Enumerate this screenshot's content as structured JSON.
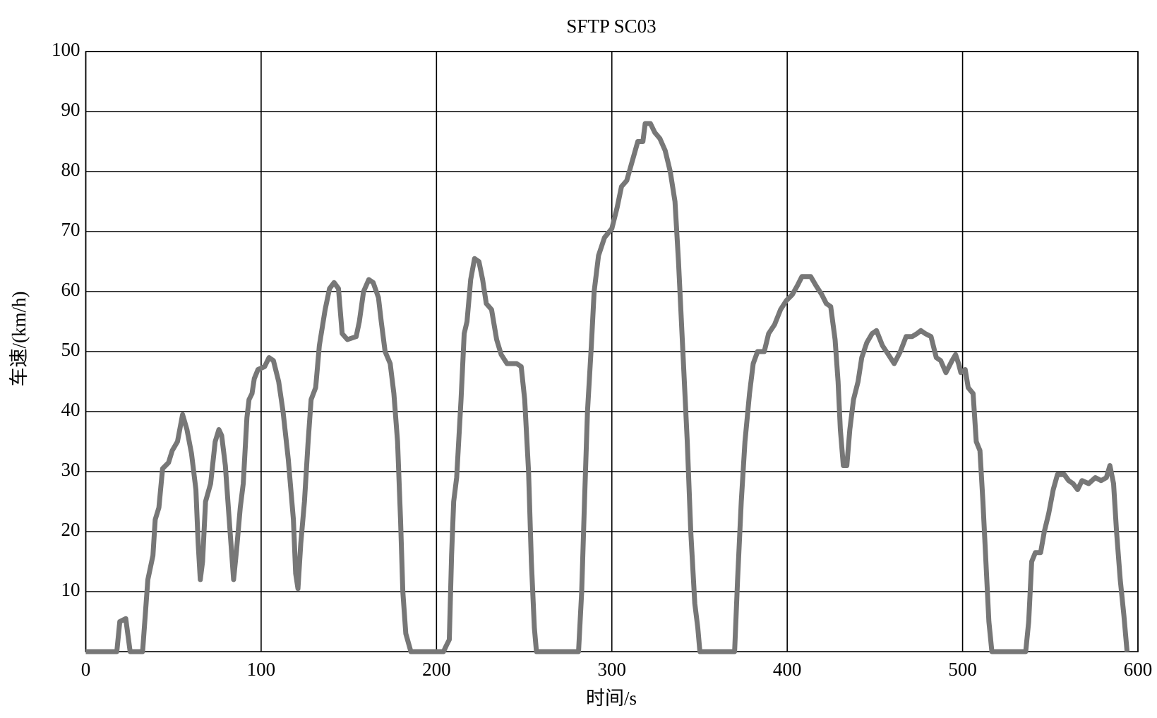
{
  "chart_data": {
    "type": "line",
    "title": "SFTP SC03",
    "x_label": "时间/s",
    "y_label": "车速/(km/h)",
    "xlim": [
      0,
      600
    ],
    "xticks": [
      0,
      100,
      200,
      300,
      400,
      500,
      600
    ],
    "ylim": [
      0,
      100
    ],
    "yticks": [
      10,
      20,
      30,
      40,
      50,
      60,
      70,
      80,
      90,
      100
    ],
    "grid": true,
    "x": [
      0,
      17.7,
      19.4,
      22.8,
      25.3,
      32.4,
      35.4,
      38.3,
      39.6,
      41.7,
      43.8,
      47.2,
      49.3,
      52.3,
      55.2,
      57.7,
      60.3,
      62.8,
      64.1,
      65.3,
      66.6,
      68.3,
      71.2,
      73.8,
      75.9,
      77.5,
      79.6,
      81.8,
      84.3,
      86,
      88.1,
      89.8,
      91.9,
      93.1,
      94.8,
      96.1,
      98.2,
      102,
      104.5,
      107,
      110,
      112.5,
      115.5,
      118.4,
      119.7,
      121,
      122.6,
      124.7,
      126.8,
      128.5,
      131.1,
      133.2,
      136.5,
      139,
      141.6,
      144.1,
      146.2,
      149.2,
      154.2,
      156,
      158.4,
      161.4,
      163.9,
      166.9,
      168.5,
      170.7,
      173.6,
      175.7,
      177.8,
      179.5,
      180.8,
      182.5,
      185.4,
      204,
      205.6,
      207.3,
      208.6,
      209.8,
      211.5,
      214,
      215.8,
      217.4,
      219.5,
      221.7,
      224.2,
      226.3,
      228.4,
      231.4,
      234.3,
      236.9,
      240.2,
      245.7,
      248.3,
      250.3,
      252.5,
      254.1,
      255.8,
      257,
      281,
      282.8,
      284.4,
      286.1,
      288.3,
      289.9,
      292.4,
      295.8,
      300,
      303,
      305.5,
      308.5,
      311.4,
      314.8,
      317.7,
      319,
      322,
      324.5,
      327.4,
      330.4,
      333.3,
      336,
      338,
      340.5,
      343,
      345,
      347.3,
      349,
      350.2,
      370,
      371.7,
      373.8,
      375.9,
      378.5,
      380.6,
      383.1,
      386.9,
      389.4,
      392.8,
      396.2,
      399.5,
      402.9,
      405.8,
      408.4,
      413.4,
      416.4,
      419.7,
      422.3,
      424.8,
      427.3,
      429,
      430.3,
      432,
      434,
      435.7,
      437.8,
      440.4,
      442.5,
      445.4,
      448.4,
      450.9,
      454.3,
      457.7,
      461,
      464.5,
      467.8,
      471.2,
      474,
      476.2,
      478.7,
      482,
      485,
      487.5,
      490.5,
      494,
      496,
      497.7,
      499,
      501.5,
      503.2,
      506,
      507.8,
      509.9,
      511.6,
      513.3,
      515,
      516.7,
      536,
      537.7,
      539.4,
      541.5,
      544.5,
      546.6,
      549.1,
      551.7,
      554.1,
      558,
      560.5,
      563,
      565.6,
      568.1,
      571.9,
      575.7,
      579,
      582,
      584,
      586.1,
      587.8,
      589.9,
      592,
      593.8
    ],
    "series": [
      {
        "name": "车速",
        "color": "#777777",
        "values": [
          0,
          0,
          5,
          5.5,
          0,
          0,
          12,
          16,
          22,
          24,
          30.5,
          31.5,
          33.5,
          35,
          39.5,
          37,
          33,
          27,
          18,
          12,
          15,
          25,
          28,
          35,
          37,
          36,
          31,
          22,
          12,
          17,
          24,
          28,
          39,
          42,
          43,
          45.5,
          47,
          47.5,
          49,
          48.5,
          45,
          40,
          32,
          22,
          13,
          10.5,
          18,
          25,
          35,
          42,
          44,
          51,
          57,
          60.5,
          61.5,
          60.5,
          53,
          52,
          52.5,
          55,
          60,
          62,
          61.5,
          59,
          55,
          50,
          48,
          43,
          35,
          22,
          10,
          3,
          0,
          0,
          1,
          2,
          16,
          25,
          29,
          42,
          53,
          55,
          62,
          65.5,
          65,
          62,
          58,
          57,
          52,
          49.5,
          48,
          48,
          47.5,
          42,
          30,
          15,
          4,
          0,
          0,
          10,
          25,
          40,
          51,
          60,
          66,
          69,
          70.5,
          74,
          77.5,
          78.5,
          81.5,
          85,
          85,
          88,
          88,
          86.5,
          85.5,
          83.5,
          80,
          75,
          65,
          50,
          35,
          20,
          8,
          4,
          0,
          0,
          12,
          25,
          35,
          43,
          48,
          50,
          50,
          53,
          54.5,
          57,
          58.5,
          59.5,
          61,
          62.5,
          62.5,
          61,
          59.5,
          58,
          57.5,
          52,
          45,
          37,
          31,
          31,
          37,
          42,
          45,
          49,
          51.5,
          53,
          53.5,
          51,
          49.5,
          48,
          50,
          52.5,
          52.5,
          53,
          53.5,
          53,
          52.5,
          49,
          48.5,
          46.5,
          48.5,
          49.5,
          48,
          46.5,
          47,
          44,
          43,
          35,
          33.5,
          25,
          15,
          5,
          0,
          0,
          5,
          15,
          16.5,
          16.5,
          20,
          23,
          27,
          29.5,
          29.5,
          28.5,
          28,
          27,
          28.5,
          28,
          29,
          28.5,
          29,
          31,
          28,
          20,
          12,
          6,
          0
        ]
      }
    ]
  }
}
